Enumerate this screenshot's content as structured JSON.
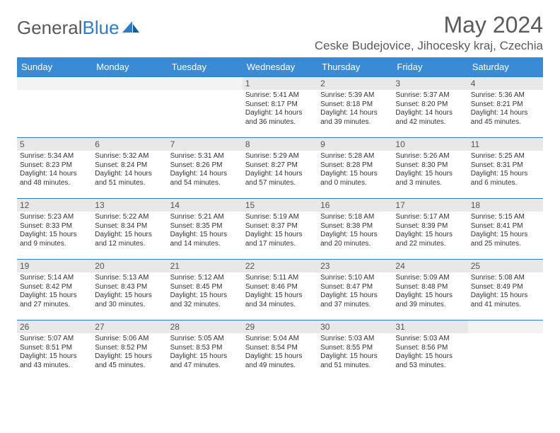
{
  "logo": {
    "word1": "General",
    "word2": "Blue"
  },
  "header": {
    "month_title": "May 2024",
    "location": "Ceske Budejovice, Jihocesky kraj, Czechia"
  },
  "days_of_week": [
    "Sunday",
    "Monday",
    "Tuesday",
    "Wednesday",
    "Thursday",
    "Friday",
    "Saturday"
  ],
  "colors": {
    "header_bg": "#3b8bd4",
    "header_text": "#ffffff",
    "rule": "#2e7cc4",
    "daynum_bg": "#e8e8e8",
    "text": "#333333",
    "title_text": "#5a5a5a"
  },
  "weeks": [
    [
      {
        "n": "",
        "sunrise": "",
        "sunset": "",
        "daylight": ""
      },
      {
        "n": "",
        "sunrise": "",
        "sunset": "",
        "daylight": ""
      },
      {
        "n": "",
        "sunrise": "",
        "sunset": "",
        "daylight": ""
      },
      {
        "n": "1",
        "sunrise": "Sunrise: 5:41 AM",
        "sunset": "Sunset: 8:17 PM",
        "daylight": "Daylight: 14 hours and 36 minutes."
      },
      {
        "n": "2",
        "sunrise": "Sunrise: 5:39 AM",
        "sunset": "Sunset: 8:18 PM",
        "daylight": "Daylight: 14 hours and 39 minutes."
      },
      {
        "n": "3",
        "sunrise": "Sunrise: 5:37 AM",
        "sunset": "Sunset: 8:20 PM",
        "daylight": "Daylight: 14 hours and 42 minutes."
      },
      {
        "n": "4",
        "sunrise": "Sunrise: 5:36 AM",
        "sunset": "Sunset: 8:21 PM",
        "daylight": "Daylight: 14 hours and 45 minutes."
      }
    ],
    [
      {
        "n": "5",
        "sunrise": "Sunrise: 5:34 AM",
        "sunset": "Sunset: 8:23 PM",
        "daylight": "Daylight: 14 hours and 48 minutes."
      },
      {
        "n": "6",
        "sunrise": "Sunrise: 5:32 AM",
        "sunset": "Sunset: 8:24 PM",
        "daylight": "Daylight: 14 hours and 51 minutes."
      },
      {
        "n": "7",
        "sunrise": "Sunrise: 5:31 AM",
        "sunset": "Sunset: 8:26 PM",
        "daylight": "Daylight: 14 hours and 54 minutes."
      },
      {
        "n": "8",
        "sunrise": "Sunrise: 5:29 AM",
        "sunset": "Sunset: 8:27 PM",
        "daylight": "Daylight: 14 hours and 57 minutes."
      },
      {
        "n": "9",
        "sunrise": "Sunrise: 5:28 AM",
        "sunset": "Sunset: 8:28 PM",
        "daylight": "Daylight: 15 hours and 0 minutes."
      },
      {
        "n": "10",
        "sunrise": "Sunrise: 5:26 AM",
        "sunset": "Sunset: 8:30 PM",
        "daylight": "Daylight: 15 hours and 3 minutes."
      },
      {
        "n": "11",
        "sunrise": "Sunrise: 5:25 AM",
        "sunset": "Sunset: 8:31 PM",
        "daylight": "Daylight: 15 hours and 6 minutes."
      }
    ],
    [
      {
        "n": "12",
        "sunrise": "Sunrise: 5:23 AM",
        "sunset": "Sunset: 8:33 PM",
        "daylight": "Daylight: 15 hours and 9 minutes."
      },
      {
        "n": "13",
        "sunrise": "Sunrise: 5:22 AM",
        "sunset": "Sunset: 8:34 PM",
        "daylight": "Daylight: 15 hours and 12 minutes."
      },
      {
        "n": "14",
        "sunrise": "Sunrise: 5:21 AM",
        "sunset": "Sunset: 8:35 PM",
        "daylight": "Daylight: 15 hours and 14 minutes."
      },
      {
        "n": "15",
        "sunrise": "Sunrise: 5:19 AM",
        "sunset": "Sunset: 8:37 PM",
        "daylight": "Daylight: 15 hours and 17 minutes."
      },
      {
        "n": "16",
        "sunrise": "Sunrise: 5:18 AM",
        "sunset": "Sunset: 8:38 PM",
        "daylight": "Daylight: 15 hours and 20 minutes."
      },
      {
        "n": "17",
        "sunrise": "Sunrise: 5:17 AM",
        "sunset": "Sunset: 8:39 PM",
        "daylight": "Daylight: 15 hours and 22 minutes."
      },
      {
        "n": "18",
        "sunrise": "Sunrise: 5:15 AM",
        "sunset": "Sunset: 8:41 PM",
        "daylight": "Daylight: 15 hours and 25 minutes."
      }
    ],
    [
      {
        "n": "19",
        "sunrise": "Sunrise: 5:14 AM",
        "sunset": "Sunset: 8:42 PM",
        "daylight": "Daylight: 15 hours and 27 minutes."
      },
      {
        "n": "20",
        "sunrise": "Sunrise: 5:13 AM",
        "sunset": "Sunset: 8:43 PM",
        "daylight": "Daylight: 15 hours and 30 minutes."
      },
      {
        "n": "21",
        "sunrise": "Sunrise: 5:12 AM",
        "sunset": "Sunset: 8:45 PM",
        "daylight": "Daylight: 15 hours and 32 minutes."
      },
      {
        "n": "22",
        "sunrise": "Sunrise: 5:11 AM",
        "sunset": "Sunset: 8:46 PM",
        "daylight": "Daylight: 15 hours and 34 minutes."
      },
      {
        "n": "23",
        "sunrise": "Sunrise: 5:10 AM",
        "sunset": "Sunset: 8:47 PM",
        "daylight": "Daylight: 15 hours and 37 minutes."
      },
      {
        "n": "24",
        "sunrise": "Sunrise: 5:09 AM",
        "sunset": "Sunset: 8:48 PM",
        "daylight": "Daylight: 15 hours and 39 minutes."
      },
      {
        "n": "25",
        "sunrise": "Sunrise: 5:08 AM",
        "sunset": "Sunset: 8:49 PM",
        "daylight": "Daylight: 15 hours and 41 minutes."
      }
    ],
    [
      {
        "n": "26",
        "sunrise": "Sunrise: 5:07 AM",
        "sunset": "Sunset: 8:51 PM",
        "daylight": "Daylight: 15 hours and 43 minutes."
      },
      {
        "n": "27",
        "sunrise": "Sunrise: 5:06 AM",
        "sunset": "Sunset: 8:52 PM",
        "daylight": "Daylight: 15 hours and 45 minutes."
      },
      {
        "n": "28",
        "sunrise": "Sunrise: 5:05 AM",
        "sunset": "Sunset: 8:53 PM",
        "daylight": "Daylight: 15 hours and 47 minutes."
      },
      {
        "n": "29",
        "sunrise": "Sunrise: 5:04 AM",
        "sunset": "Sunset: 8:54 PM",
        "daylight": "Daylight: 15 hours and 49 minutes."
      },
      {
        "n": "30",
        "sunrise": "Sunrise: 5:03 AM",
        "sunset": "Sunset: 8:55 PM",
        "daylight": "Daylight: 15 hours and 51 minutes."
      },
      {
        "n": "31",
        "sunrise": "Sunrise: 5:03 AM",
        "sunset": "Sunset: 8:56 PM",
        "daylight": "Daylight: 15 hours and 53 minutes."
      },
      {
        "n": "",
        "sunrise": "",
        "sunset": "",
        "daylight": ""
      }
    ]
  ]
}
